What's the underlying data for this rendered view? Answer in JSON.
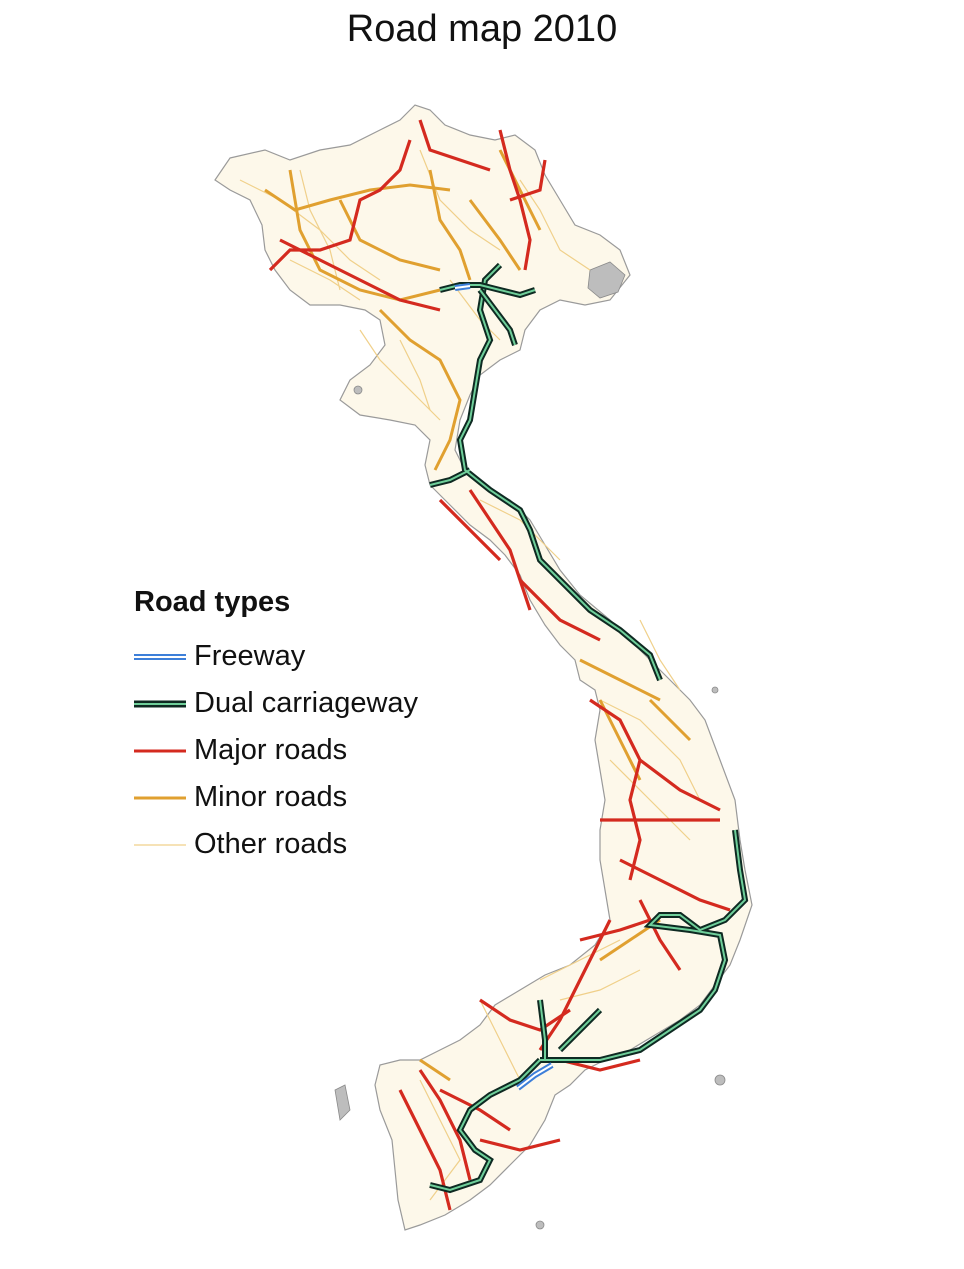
{
  "title": "Road map 2010",
  "legend": {
    "title": "Road types",
    "items": [
      {
        "label": "Freeway",
        "style": "double",
        "color": "#3d7fd9",
        "inner": "#ffffff"
      },
      {
        "label": "Dual carriageway",
        "style": "double",
        "color": "#0e2a22",
        "inner": "#6fcf9a"
      },
      {
        "label": "Major roads",
        "style": "solid",
        "color": "#d42a1f"
      },
      {
        "label": "Minor roads",
        "style": "solid",
        "color": "#e0a030"
      },
      {
        "label": "Other roads",
        "style": "thin",
        "color": "#f0d08a"
      }
    ]
  },
  "colors": {
    "land": "#fdf8ea",
    "border": "#9a9a9a",
    "freeway": "#3d7fd9",
    "dual": "#0e2a22",
    "dual_inner": "#6fcf9a",
    "major": "#d42a1f",
    "minor": "#e0a030",
    "other": "#f0d08a"
  }
}
